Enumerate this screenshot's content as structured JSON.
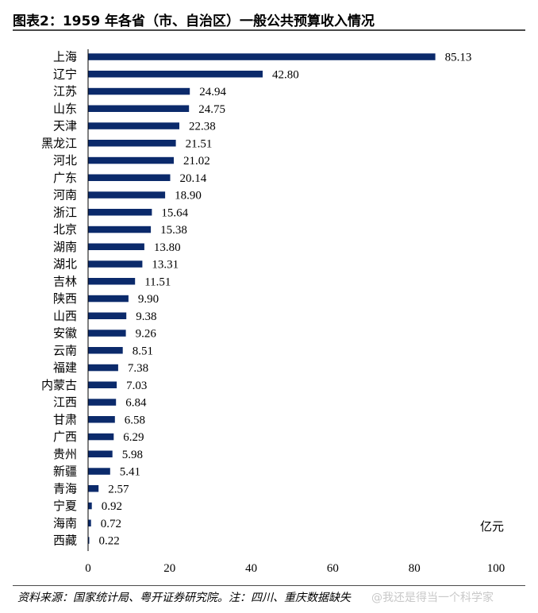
{
  "header": {
    "title": "图表2：1959 年各省（市、自治区）一般公共预算收入情况"
  },
  "footer": {
    "source": "资料来源：国家统计局、粤开证券研究院。注：四川、重庆数据缺失",
    "watermark": "@我还是得当一个科学家"
  },
  "chart_data": {
    "type": "bar",
    "orientation": "horizontal",
    "categories": [
      "上海",
      "辽宁",
      "江苏",
      "山东",
      "天津",
      "黑龙江",
      "河北",
      "广东",
      "河南",
      "浙江",
      "北京",
      "湖南",
      "湖北",
      "吉林",
      "陕西",
      "山西",
      "安徽",
      "云南",
      "福建",
      "内蒙古",
      "江西",
      "甘肃",
      "广西",
      "贵州",
      "新疆",
      "青海",
      "宁夏",
      "海南",
      "西藏"
    ],
    "values": [
      85.13,
      42.8,
      24.94,
      24.75,
      22.38,
      21.51,
      21.02,
      20.14,
      18.9,
      15.64,
      15.38,
      13.8,
      13.31,
      11.51,
      9.9,
      9.38,
      9.26,
      8.51,
      7.38,
      7.03,
      6.84,
      6.58,
      6.29,
      5.98,
      5.41,
      2.57,
      0.92,
      0.72,
      0.22
    ],
    "value_labels": [
      "85.13",
      "42.80",
      "24.94",
      "24.75",
      "22.38",
      "21.51",
      "21.02",
      "20.14",
      "18.90",
      "15.64",
      "15.38",
      "13.80",
      "13.31",
      "11.51",
      "9.90",
      "9.38",
      "9.26",
      "8.51",
      "7.38",
      "7.03",
      "6.84",
      "6.58",
      "6.29",
      "5.98",
      "5.41",
      "2.57",
      "0.92",
      "0.72",
      "0.22"
    ],
    "unit_label": "亿元",
    "xlim": [
      0,
      100
    ],
    "xticks": [
      "0",
      "20",
      "40",
      "60",
      "80",
      "100"
    ],
    "grid": false,
    "bar_color": "#0b2a6b"
  }
}
